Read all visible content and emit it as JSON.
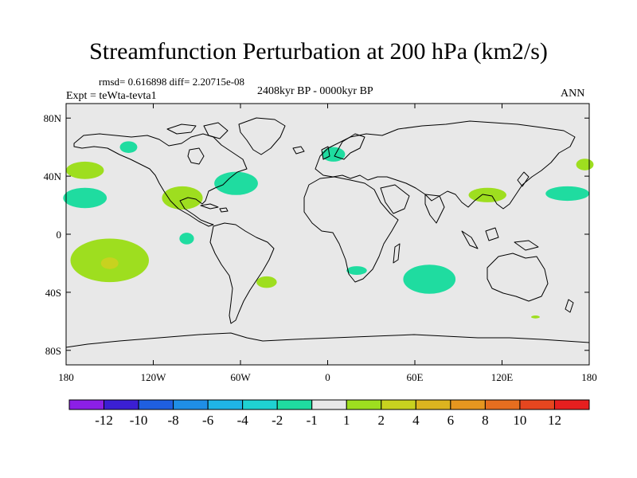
{
  "chart_data": {
    "type": "heatmap",
    "title": "Streamfunction Perturbation at 200 hPa (km2/s)",
    "stats_text": "rmsd= 0.616898 diff= 2.20715e-08",
    "period_text": "2408kyr BP - 0000kyr BP",
    "experiment_text": "Expt = teWta-tevta1",
    "season_text": "ANN",
    "projection": "cylindrical equidistant (world map)",
    "x_range": [
      -180,
      180
    ],
    "y_range": [
      -90,
      90
    ],
    "x_ticks": [
      {
        "value": -180,
        "label": "180"
      },
      {
        "value": -120,
        "label": "120W"
      },
      {
        "value": -60,
        "label": "60W"
      },
      {
        "value": 0,
        "label": "0"
      },
      {
        "value": 60,
        "label": "60E"
      },
      {
        "value": 120,
        "label": "120E"
      },
      {
        "value": 180,
        "label": "180"
      }
    ],
    "y_ticks": [
      {
        "value": 80,
        "label": "80N"
      },
      {
        "value": 40,
        "label": "40N"
      },
      {
        "value": 0,
        "label": "0"
      },
      {
        "value": -40,
        "label": "40S"
      },
      {
        "value": -80,
        "label": "80S"
      }
    ],
    "background_color": "#e8e8e8",
    "colorbar": {
      "colors": [
        "#8c1fe6",
        "#3b1fd4",
        "#1f5fe0",
        "#1f8ee6",
        "#1fb4e6",
        "#1fd2d2",
        "#1fdca0",
        "#e8e8e8",
        "#9ede1f",
        "#c8d21f",
        "#dcb41f",
        "#e6961f",
        "#e66e1f",
        "#e6461f",
        "#e61f1f"
      ],
      "labels": [
        "-12",
        "-10",
        "-8",
        "-6",
        "-4",
        "-2",
        "-1",
        "1",
        "2",
        "4",
        "6",
        "8",
        "10",
        "12"
      ]
    },
    "anomaly_regions": [
      {
        "lon": -167,
        "lat": 44,
        "rx": 13,
        "ry": 6,
        "level": "1 to 2",
        "color": "#9ede1f"
      },
      {
        "lon": -167,
        "lat": 25,
        "rx": 15,
        "ry": 7,
        "level": "-2 to -1",
        "color": "#1fdca0"
      },
      {
        "lon": -137,
        "lat": 60,
        "rx": 6,
        "ry": 4,
        "level": "-2 to -1",
        "color": "#1fdca0"
      },
      {
        "lon": -100,
        "lat": 25,
        "rx": 14,
        "ry": 8,
        "level": "1 to 2",
        "color": "#9ede1f"
      },
      {
        "lon": -63,
        "lat": 35,
        "rx": 15,
        "ry": 8,
        "level": "-2 to -1",
        "color": "#1fdca0"
      },
      {
        "lon": 4,
        "lat": 55,
        "rx": 8,
        "ry": 5,
        "level": "-2 to -1",
        "color": "#1fdca0"
      },
      {
        "lon": -97,
        "lat": -3,
        "rx": 5,
        "ry": 4,
        "level": "-2 to -1",
        "color": "#1fdca0"
      },
      {
        "lon": -150,
        "lat": -18,
        "rx": 27,
        "ry": 15,
        "level": "1 to 2",
        "color": "#9ede1f"
      },
      {
        "lon": -150,
        "lat": -20,
        "rx": 6,
        "ry": 4,
        "level": "2 to 4",
        "color": "#c8d21f"
      },
      {
        "lon": -42,
        "lat": -33,
        "rx": 7,
        "ry": 4,
        "level": "1 to 2",
        "color": "#9ede1f"
      },
      {
        "lon": 20,
        "lat": -25,
        "rx": 7,
        "ry": 3,
        "level": "-2 to -1",
        "color": "#1fdca0"
      },
      {
        "lon": 70,
        "lat": -31,
        "rx": 18,
        "ry": 10,
        "level": "-2 to -1",
        "color": "#1fdca0"
      },
      {
        "lon": 110,
        "lat": 27,
        "rx": 13,
        "ry": 5,
        "level": "1 to 2",
        "color": "#9ede1f"
      },
      {
        "lon": 165,
        "lat": 28,
        "rx": 15,
        "ry": 5,
        "level": "-2 to -1",
        "color": "#1fdca0"
      },
      {
        "lon": 177,
        "lat": 48,
        "rx": 6,
        "ry": 4,
        "level": "1 to 2",
        "color": "#9ede1f"
      },
      {
        "lon": 143,
        "lat": -57,
        "rx": 3,
        "ry": 1,
        "level": "1 to 2",
        "color": "#9ede1f"
      }
    ]
  }
}
